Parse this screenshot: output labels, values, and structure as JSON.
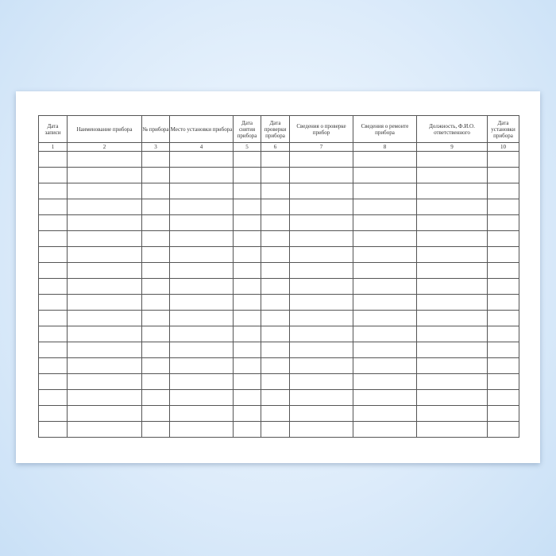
{
  "headers": [
    "Дата записи",
    "Наименование прибора",
    "№ прибора",
    "Место установки прибора",
    "Дата снятия прибора",
    "Дата проверки прибора",
    "Сведения о проверке прибор",
    "Сведения о ремонте прибора",
    "Должность, Ф.И.О. ответственного",
    "Дата установки прибора"
  ],
  "numbers": [
    "1",
    "2",
    "3",
    "4",
    "5",
    "6",
    "7",
    "8",
    "9",
    "10"
  ],
  "empty_rows": 18
}
